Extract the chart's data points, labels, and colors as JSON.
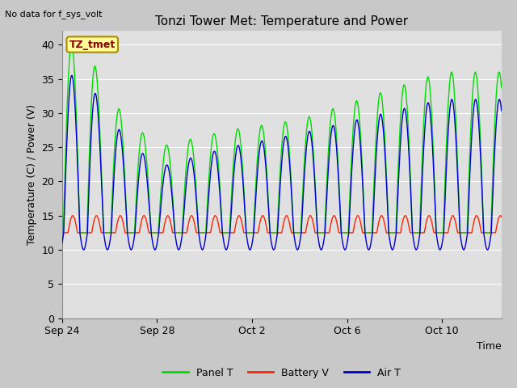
{
  "title": "Tonzi Tower Met: Temperature and Power",
  "top_left_text": "No data for f_sys_volt",
  "ylabel": "Temperature (C) / Power (V)",
  "xlabel": "Time",
  "ylim": [
    0,
    42
  ],
  "yticks": [
    0,
    5,
    10,
    15,
    20,
    25,
    30,
    35,
    40
  ],
  "fig_bg_color": "#c8c8c8",
  "plot_bg_color": "#e0e0e0",
  "grid_color": "#ffffff",
  "panel_color": "#00dd00",
  "battery_color": "#ff2200",
  "air_color": "#0000cc",
  "annotation_text": "TZ_tmet",
  "annotation_color": "#880000",
  "annotation_bg": "#ffff99",
  "annotation_border": "#aa8800",
  "x_tick_labels": [
    "Sep 24",
    "Sep 28",
    "Oct 2",
    "Oct 6",
    "Oct 10"
  ],
  "x_tick_positions": [
    0,
    4,
    8,
    12,
    16
  ],
  "xlim": [
    0,
    18.5
  ]
}
